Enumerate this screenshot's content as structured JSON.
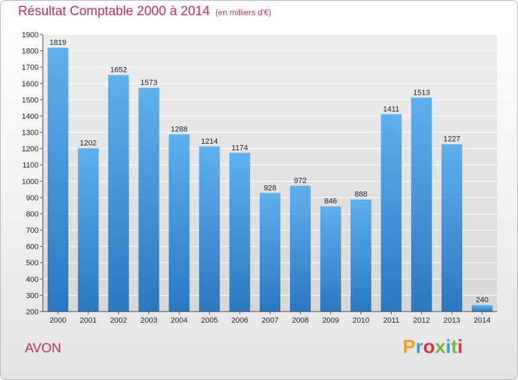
{
  "title": "Résultat Comptable 2000 à 2014",
  "subtitle": "(en milliers d'€)",
  "footer_label": "AVON",
  "logo": {
    "letters": [
      "P",
      "r",
      "o",
      "x",
      "i",
      "t",
      "i"
    ],
    "colors": [
      "#f6a21a",
      "#3aa0d8",
      "#e0303a",
      "#7ab83c",
      "#3aa0d8",
      "#7ab83c",
      "#e0303a"
    ]
  },
  "colors": {
    "bar_top": "#5fb0ee",
    "bar_bottom": "#2a78bf",
    "accent": "#c0305a",
    "grid": "#ffffff"
  },
  "chart_data": {
    "type": "bar",
    "categories": [
      "2000",
      "2001",
      "2002",
      "2003",
      "2004",
      "2005",
      "2006",
      "2007",
      "2008",
      "2009",
      "2010",
      "2011",
      "2012",
      "2013",
      "2014"
    ],
    "values": [
      1819,
      1202,
      1652,
      1573,
      1288,
      1214,
      1174,
      928,
      972,
      846,
      888,
      1411,
      1513,
      1227,
      240
    ],
    "ylim": [
      200,
      1900
    ],
    "yticks": [
      200,
      300,
      400,
      500,
      600,
      700,
      800,
      900,
      1000,
      1100,
      1200,
      1300,
      1400,
      1500,
      1600,
      1700,
      1800,
      1900
    ],
    "title": "Résultat Comptable 2000 à 2014",
    "subtitle": "(en milliers d'€)",
    "xlabel": "",
    "ylabel": "",
    "grid": true
  }
}
